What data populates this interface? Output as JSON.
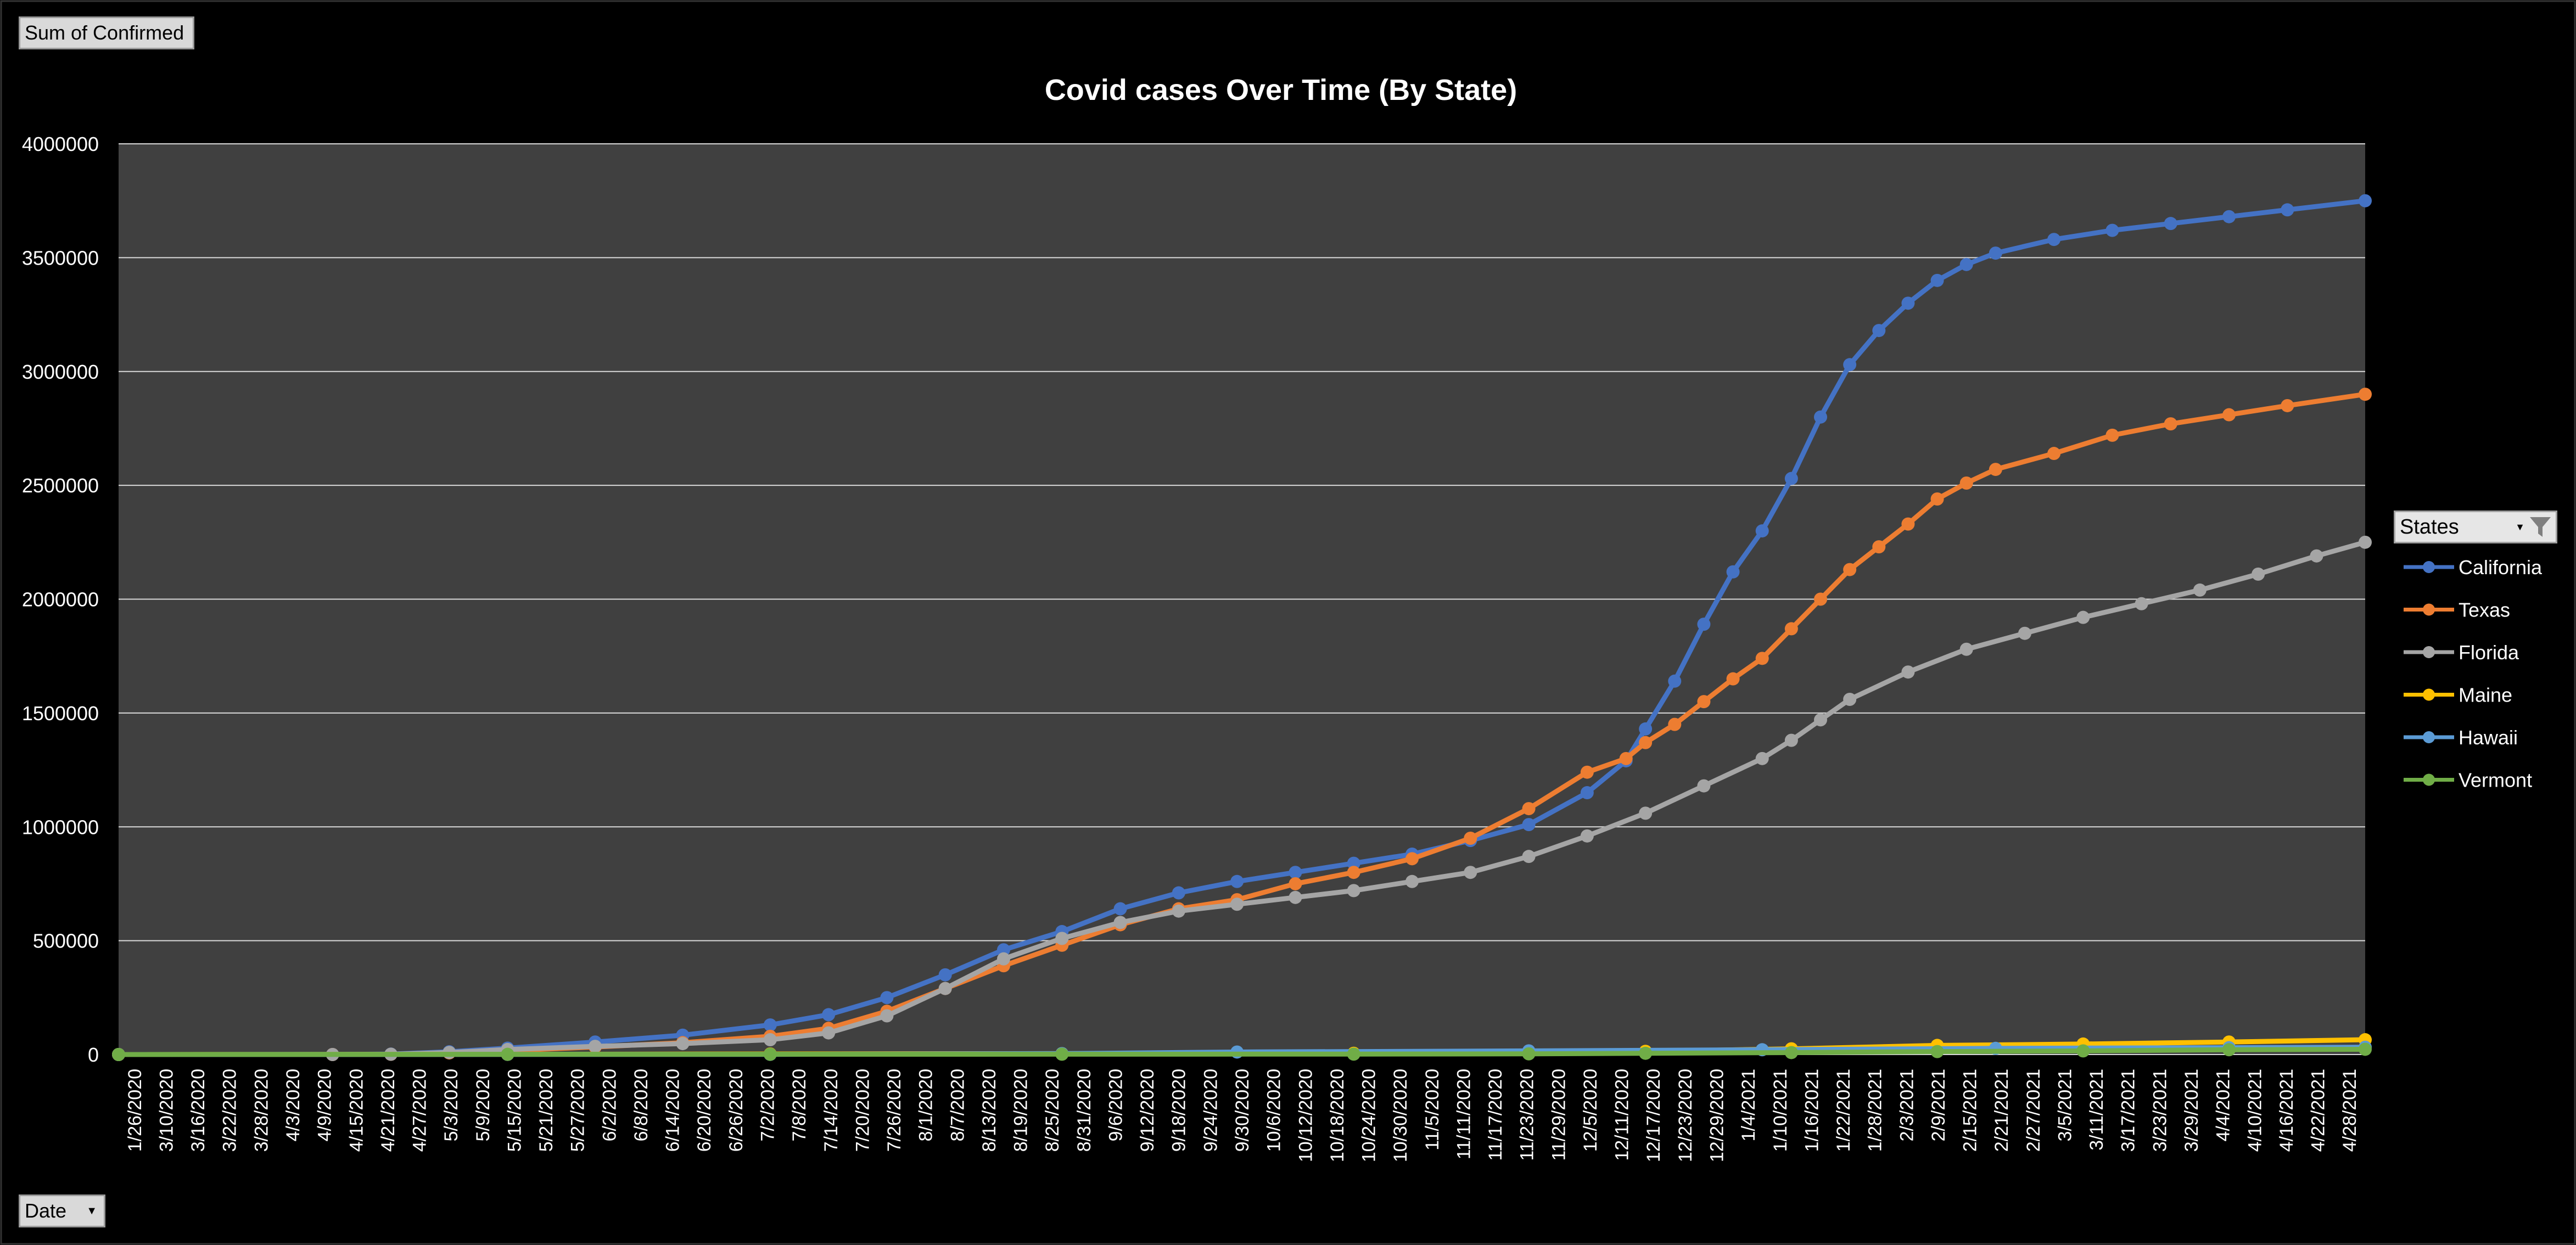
{
  "filters": {
    "value_field": "Sum of Confirmed",
    "axis_field": "Date",
    "legend_field": "States"
  },
  "chart_data": {
    "type": "line",
    "title": "Covid cases Over Time (By State)",
    "xlabel": "",
    "ylabel": "",
    "ylim": [
      0,
      4000000
    ],
    "yticks": [
      0,
      500000,
      1000000,
      1500000,
      2000000,
      2500000,
      3000000,
      3500000,
      4000000
    ],
    "grid": true,
    "legend": "right",
    "plot_background": "#404040",
    "x_range": [
      "2020-01-26",
      "2021-05-02"
    ],
    "xtick_labels": [
      "1/26/2020",
      "3/10/2020",
      "3/16/2020",
      "3/22/2020",
      "3/28/2020",
      "4/3/2020",
      "4/9/2020",
      "4/15/2020",
      "4/21/2020",
      "4/27/2020",
      "5/3/2020",
      "5/9/2020",
      "5/15/2020",
      "5/21/2020",
      "5/27/2020",
      "6/2/2020",
      "6/8/2020",
      "6/14/2020",
      "6/20/2020",
      "6/26/2020",
      "7/2/2020",
      "7/8/2020",
      "7/14/2020",
      "7/20/2020",
      "7/26/2020",
      "8/1/2020",
      "8/7/2020",
      "8/13/2020",
      "8/19/2020",
      "8/25/2020",
      "8/31/2020",
      "9/6/2020",
      "9/12/2020",
      "9/18/2020",
      "9/24/2020",
      "9/30/2020",
      "10/6/2020",
      "10/12/2020",
      "10/18/2020",
      "10/24/2020",
      "10/30/2020",
      "11/5/2020",
      "11/11/2020",
      "11/17/2020",
      "11/23/2020",
      "11/29/2020",
      "12/5/2020",
      "12/11/2020",
      "12/17/2020",
      "12/23/2020",
      "12/29/2020",
      "1/4/2021",
      "1/10/2021",
      "1/16/2021",
      "1/22/2021",
      "1/28/2021",
      "2/3/2021",
      "2/9/2021",
      "2/15/2021",
      "2/21/2021",
      "2/27/2021",
      "3/5/2021",
      "3/11/2021",
      "3/17/2021",
      "3/23/2021",
      "3/29/2021",
      "4/4/2021",
      "4/10/2021",
      "4/16/2021",
      "4/22/2021",
      "4/28/2021"
    ],
    "series": [
      {
        "name": "California",
        "color": "#4472c4",
        "points": [
          [
            "2020-01-26",
            0
          ],
          [
            "2020-03-10",
            150
          ],
          [
            "2020-03-22",
            2000
          ],
          [
            "2020-04-03",
            12000
          ],
          [
            "2020-04-15",
            28000
          ],
          [
            "2020-05-03",
            55000
          ],
          [
            "2020-05-21",
            85000
          ],
          [
            "2020-06-08",
            130000
          ],
          [
            "2020-06-20",
            175000
          ],
          [
            "2020-07-02",
            250000
          ],
          [
            "2020-07-14",
            350000
          ],
          [
            "2020-07-26",
            460000
          ],
          [
            "2020-08-07",
            540000
          ],
          [
            "2020-08-19",
            640000
          ],
          [
            "2020-08-31",
            710000
          ],
          [
            "2020-09-12",
            760000
          ],
          [
            "2020-09-24",
            800000
          ],
          [
            "2020-10-06",
            840000
          ],
          [
            "2020-10-18",
            880000
          ],
          [
            "2020-10-30",
            940000
          ],
          [
            "2020-11-11",
            1010000
          ],
          [
            "2020-11-23",
            1150000
          ],
          [
            "2020-12-01",
            1290000
          ],
          [
            "2020-12-05",
            1430000
          ],
          [
            "2020-12-11",
            1640000
          ],
          [
            "2020-12-17",
            1890000
          ],
          [
            "2020-12-23",
            2120000
          ],
          [
            "2020-12-29",
            2300000
          ],
          [
            "2021-01-04",
            2530000
          ],
          [
            "2021-01-10",
            2800000
          ],
          [
            "2021-01-16",
            3030000
          ],
          [
            "2021-01-22",
            3180000
          ],
          [
            "2021-01-28",
            3300000
          ],
          [
            "2021-02-03",
            3400000
          ],
          [
            "2021-02-09",
            3470000
          ],
          [
            "2021-02-15",
            3520000
          ],
          [
            "2021-02-27",
            3580000
          ],
          [
            "2021-03-11",
            3620000
          ],
          [
            "2021-03-23",
            3650000
          ],
          [
            "2021-04-04",
            3680000
          ],
          [
            "2021-04-16",
            3710000
          ],
          [
            "2021-05-02",
            3750000
          ]
        ]
      },
      {
        "name": "Texas",
        "color": "#ed7d31",
        "points": [
          [
            "2020-01-26",
            0
          ],
          [
            "2020-03-10",
            50
          ],
          [
            "2020-03-22",
            1000
          ],
          [
            "2020-04-03",
            7000
          ],
          [
            "2020-04-15",
            17000
          ],
          [
            "2020-05-03",
            33000
          ],
          [
            "2020-05-21",
            52000
          ],
          [
            "2020-06-08",
            80000
          ],
          [
            "2020-06-20",
            115000
          ],
          [
            "2020-07-02",
            190000
          ],
          [
            "2020-07-14",
            290000
          ],
          [
            "2020-07-26",
            390000
          ],
          [
            "2020-08-07",
            480000
          ],
          [
            "2020-08-19",
            570000
          ],
          [
            "2020-08-31",
            640000
          ],
          [
            "2020-09-12",
            680000
          ],
          [
            "2020-09-24",
            750000
          ],
          [
            "2020-10-06",
            800000
          ],
          [
            "2020-10-18",
            860000
          ],
          [
            "2020-10-30",
            950000
          ],
          [
            "2020-11-11",
            1080000
          ],
          [
            "2020-11-23",
            1240000
          ],
          [
            "2020-12-01",
            1300000
          ],
          [
            "2020-12-05",
            1370000
          ],
          [
            "2020-12-11",
            1450000
          ],
          [
            "2020-12-17",
            1550000
          ],
          [
            "2020-12-23",
            1650000
          ],
          [
            "2020-12-29",
            1740000
          ],
          [
            "2021-01-04",
            1870000
          ],
          [
            "2021-01-10",
            2000000
          ],
          [
            "2021-01-16",
            2130000
          ],
          [
            "2021-01-22",
            2230000
          ],
          [
            "2021-01-28",
            2330000
          ],
          [
            "2021-02-03",
            2440000
          ],
          [
            "2021-02-09",
            2510000
          ],
          [
            "2021-02-15",
            2570000
          ],
          [
            "2021-02-27",
            2640000
          ],
          [
            "2021-03-11",
            2720000
          ],
          [
            "2021-03-23",
            2770000
          ],
          [
            "2021-04-04",
            2810000
          ],
          [
            "2021-04-16",
            2850000
          ],
          [
            "2021-05-02",
            2900000
          ]
        ]
      },
      {
        "name": "Florida",
        "color": "#a5a5a5",
        "points": [
          [
            "2020-01-26",
            0
          ],
          [
            "2020-03-10",
            30
          ],
          [
            "2020-03-22",
            1200
          ],
          [
            "2020-04-03",
            9000
          ],
          [
            "2020-04-15",
            22000
          ],
          [
            "2020-05-03",
            36000
          ],
          [
            "2020-05-21",
            48000
          ],
          [
            "2020-06-08",
            65000
          ],
          [
            "2020-06-20",
            95000
          ],
          [
            "2020-07-02",
            170000
          ],
          [
            "2020-07-14",
            290000
          ],
          [
            "2020-07-26",
            420000
          ],
          [
            "2020-08-07",
            510000
          ],
          [
            "2020-08-19",
            580000
          ],
          [
            "2020-08-31",
            630000
          ],
          [
            "2020-09-12",
            660000
          ],
          [
            "2020-09-24",
            690000
          ],
          [
            "2020-10-06",
            720000
          ],
          [
            "2020-10-18",
            760000
          ],
          [
            "2020-10-30",
            800000
          ],
          [
            "2020-11-11",
            870000
          ],
          [
            "2020-11-23",
            960000
          ],
          [
            "2020-12-05",
            1060000
          ],
          [
            "2020-12-17",
            1180000
          ],
          [
            "2020-12-29",
            1300000
          ],
          [
            "2021-01-04",
            1380000
          ],
          [
            "2021-01-10",
            1470000
          ],
          [
            "2021-01-16",
            1560000
          ],
          [
            "2021-01-28",
            1680000
          ],
          [
            "2021-02-09",
            1780000
          ],
          [
            "2021-02-21",
            1850000
          ],
          [
            "2021-03-05",
            1920000
          ],
          [
            "2021-03-17",
            1980000
          ],
          [
            "2021-03-29",
            2040000
          ],
          [
            "2021-04-10",
            2110000
          ],
          [
            "2021-04-22",
            2190000
          ],
          [
            "2021-05-02",
            2250000
          ]
        ]
      },
      {
        "name": "Maine",
        "color": "#ffc000",
        "points": [
          [
            "2020-01-26",
            0
          ],
          [
            "2020-04-15",
            800
          ],
          [
            "2020-06-08",
            2500
          ],
          [
            "2020-08-07",
            4000
          ],
          [
            "2020-10-06",
            5500
          ],
          [
            "2020-11-11",
            8000
          ],
          [
            "2020-12-05",
            14000
          ],
          [
            "2021-01-04",
            25000
          ],
          [
            "2021-02-03",
            40000
          ],
          [
            "2021-03-05",
            46000
          ],
          [
            "2021-04-04",
            55000
          ],
          [
            "2021-05-02",
            65000
          ]
        ]
      },
      {
        "name": "Hawaii",
        "color": "#5b9bd5",
        "points": [
          [
            "2020-01-26",
            0
          ],
          [
            "2020-04-15",
            500
          ],
          [
            "2020-06-08",
            700
          ],
          [
            "2020-08-07",
            4000
          ],
          [
            "2020-09-12",
            11000
          ],
          [
            "2020-11-11",
            16000
          ],
          [
            "2020-12-29",
            21000
          ],
          [
            "2021-02-15",
            27000
          ],
          [
            "2021-04-04",
            30000
          ],
          [
            "2021-05-02",
            32000
          ]
        ]
      },
      {
        "name": "Vermont",
        "color": "#70ad47",
        "points": [
          [
            "2020-01-26",
            0
          ],
          [
            "2020-04-15",
            800
          ],
          [
            "2020-06-08",
            1100
          ],
          [
            "2020-08-07",
            1400
          ],
          [
            "2020-10-06",
            1800
          ],
          [
            "2020-11-11",
            3000
          ],
          [
            "2020-12-05",
            5500
          ],
          [
            "2021-01-04",
            8500
          ],
          [
            "2021-02-03",
            13000
          ],
          [
            "2021-03-05",
            16000
          ],
          [
            "2021-04-04",
            21000
          ],
          [
            "2021-05-02",
            23000
          ]
        ]
      }
    ]
  }
}
